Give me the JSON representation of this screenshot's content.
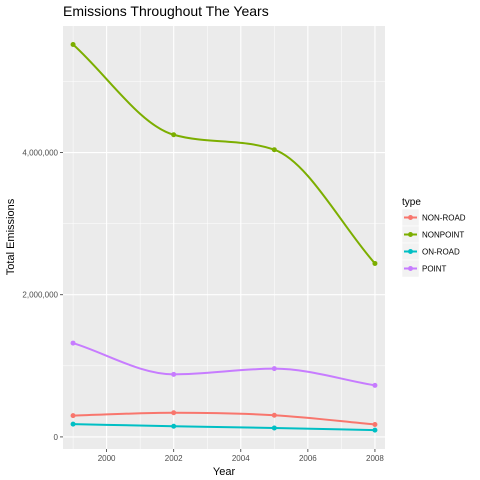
{
  "chart_data": {
    "type": "line",
    "title": "Emissions Throughout The Years",
    "xlabel": "Year",
    "ylabel": "Total Emissions",
    "x": [
      1999,
      2002,
      2005,
      2008
    ],
    "xlim": [
      1998.7,
      2008.3
    ],
    "ylim": [
      -170000,
      5780000
    ],
    "x_ticks": [
      2000,
      2002,
      2004,
      2006,
      2008
    ],
    "x_tick_labels": [
      "2000",
      "2002",
      "2004",
      "2006",
      "2008"
    ],
    "y_ticks": [
      0,
      2000000,
      4000000
    ],
    "y_tick_labels": [
      "0",
      "2,000,000",
      "4,000,000"
    ],
    "grid": true,
    "smoothed": true,
    "legend": {
      "title": "type",
      "placement": "right"
    },
    "series": [
      {
        "name": "NON-ROAD",
        "color": "#f8766d",
        "values": [
          300000,
          340000,
          305000,
          175000
        ]
      },
      {
        "name": "NONPOINT",
        "color": "#7cae00",
        "values": [
          5520000,
          4250000,
          4040000,
          2440000
        ]
      },
      {
        "name": "ON-ROAD",
        "color": "#00bfc4",
        "values": [
          180000,
          150000,
          125000,
          95000
        ]
      },
      {
        "name": "POINT",
        "color": "#c77cff",
        "values": [
          1320000,
          880000,
          960000,
          725000
        ]
      }
    ]
  }
}
